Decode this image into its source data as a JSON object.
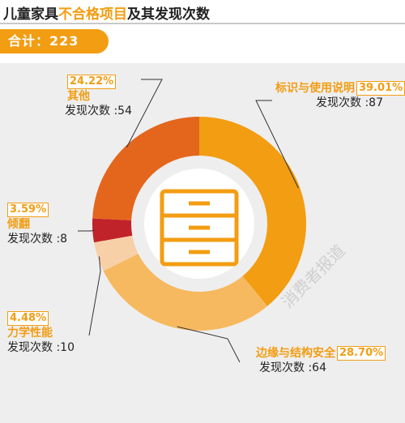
{
  "title_prefix": "儿童家具",
  "title_highlight": "不合格项目",
  "title_suffix": "及其发现次数",
  "total_label": "合计：223",
  "watermark": "消费者报道",
  "center_icon": "drawer-cabinet-icon",
  "chart_data": {
    "type": "pie",
    "title": "儿童家具不合格项目及其发现次数",
    "total": 223,
    "slices": [
      {
        "name": "标识与使用说明",
        "percent": "39.01%",
        "percent_value": 39.01,
        "count_label": "发现次数 :87",
        "count": 87,
        "color": "#f29d12"
      },
      {
        "name": "边缘与结构安全",
        "percent": "28.70%",
        "percent_value": 28.7,
        "count_label": "发现次数 :64",
        "count": 64,
        "color": "#f7b95f"
      },
      {
        "name": "力学性能",
        "percent": "4.48%",
        "percent_value": 4.48,
        "count_label": "发现次数 :10",
        "count": 10,
        "color": "#f7d0a8"
      },
      {
        "name": "倾翻",
        "percent": "3.59%",
        "percent_value": 3.59,
        "count_label": "发现次数 :8",
        "count": 8,
        "color": "#c0232a"
      },
      {
        "name": "其他",
        "percent": "24.22%",
        "percent_value": 24.22,
        "count_label": "发现次数 :54",
        "count": 54,
        "color": "#e4661c"
      }
    ]
  }
}
